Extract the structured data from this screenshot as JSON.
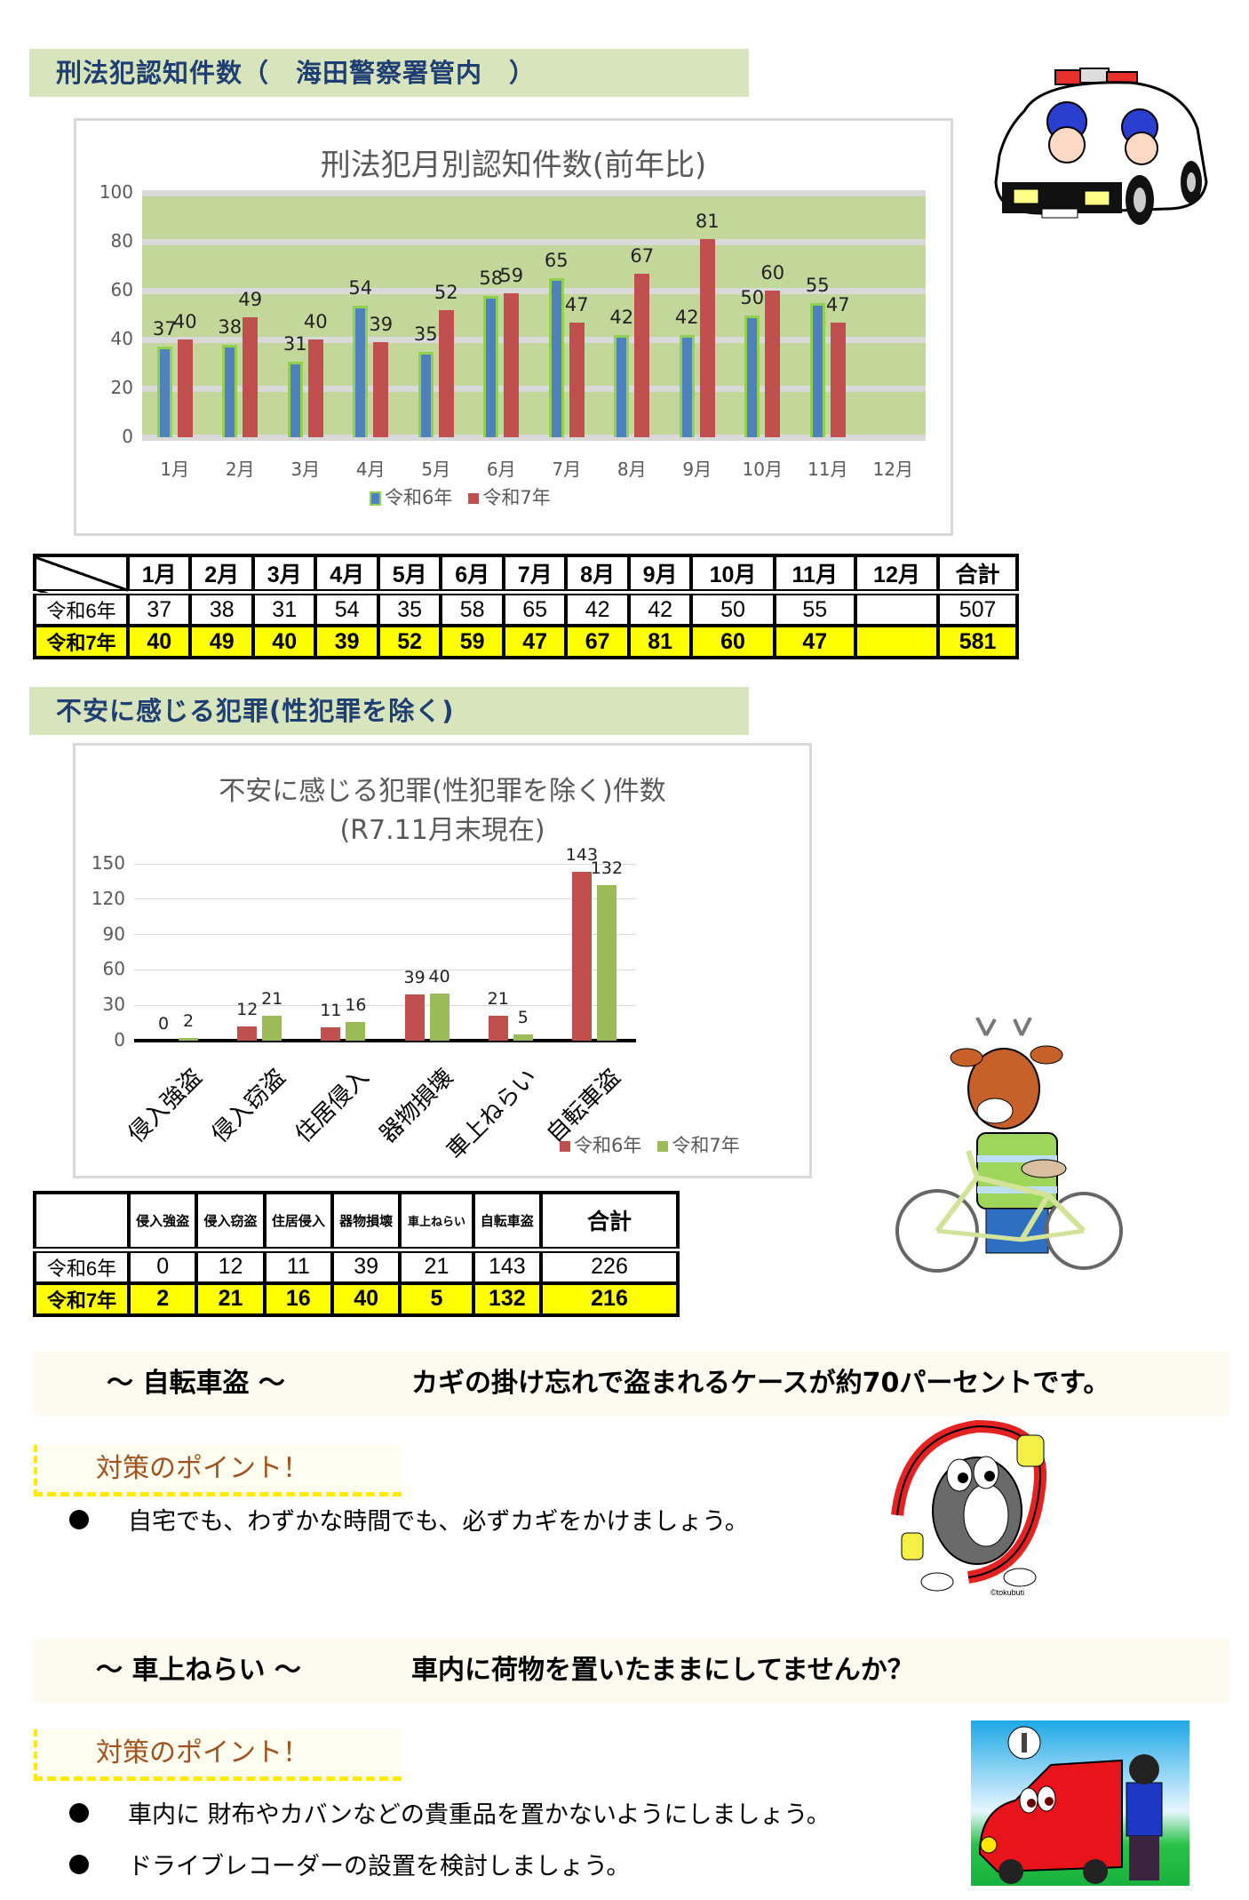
{
  "section1": {
    "title": "刑法犯認知件数（　海田警察署管内　）"
  },
  "section2": {
    "title": "不安に感じる犯罪(性犯罪を除く)"
  },
  "colors": {
    "header_bg": "#d8e4bc",
    "header_text": "#1f3f73",
    "r6_blue": "#4f81bd",
    "r6_outline": "#92d050",
    "r7_red": "#c0504d",
    "r7_green": "#9bbb59",
    "plot_bg": "#c4d79b",
    "highlight_yellow": "#ffff00",
    "point_text": "#a0521e"
  },
  "chart_data": [
    {
      "type": "bar",
      "title": "刑法犯月別認知件数(前年比)",
      "categories": [
        "1月",
        "2月",
        "3月",
        "4月",
        "5月",
        "6月",
        "7月",
        "8月",
        "9月",
        "10月",
        "11月",
        "12月"
      ],
      "series": [
        {
          "name": "令和6年",
          "values": [
            37,
            38,
            31,
            54,
            35,
            58,
            65,
            42,
            42,
            50,
            55,
            null
          ]
        },
        {
          "name": "令和7年",
          "values": [
            40,
            49,
            40,
            39,
            52,
            59,
            47,
            67,
            81,
            60,
            47,
            null
          ]
        }
      ],
      "xlabel": "",
      "ylabel": "",
      "ylim": [
        0,
        100
      ],
      "yticks": [
        0,
        20,
        40,
        60,
        80,
        100
      ],
      "grid": true,
      "legend_position": "bottom"
    },
    {
      "type": "bar",
      "title": "不安に感じる犯罪(性犯罪を除く)件数",
      "subtitle": "(R7.11月末現在)",
      "categories": [
        "侵入強盗",
        "侵入窃盗",
        "住居侵入",
        "器物損壊",
        "車上ねらい",
        "自転車盗"
      ],
      "series": [
        {
          "name": "令和6年",
          "values": [
            0,
            12,
            11,
            39,
            21,
            143
          ]
        },
        {
          "name": "令和7年",
          "values": [
            2,
            21,
            16,
            40,
            5,
            132
          ]
        }
      ],
      "xlabel": "",
      "ylabel": "",
      "ylim": [
        0,
        150
      ],
      "yticks": [
        0,
        30,
        60,
        90,
        120,
        150
      ],
      "grid": true,
      "legend_position": "bottom-right"
    }
  ],
  "table1": {
    "headers": [
      "",
      "1月",
      "2月",
      "3月",
      "4月",
      "5月",
      "6月",
      "7月",
      "8月",
      "9月",
      "10月",
      "11月",
      "12月",
      "合計"
    ],
    "rows": [
      {
        "label": "令和6年",
        "cells": [
          "37",
          "38",
          "31",
          "54",
          "35",
          "58",
          "65",
          "42",
          "42",
          "50",
          "55",
          "",
          "507"
        ]
      },
      {
        "label": "令和7年",
        "cells": [
          "40",
          "49",
          "40",
          "39",
          "52",
          "59",
          "47",
          "67",
          "81",
          "60",
          "47",
          "",
          "581"
        ]
      }
    ]
  },
  "table2": {
    "headers": [
      "",
      "侵入強盗",
      "侵入窃盗",
      "住居侵入",
      "器物損壊",
      "車上ねらい",
      "自転車盗",
      "合計"
    ],
    "rows": [
      {
        "label": "令和6年",
        "cells": [
          "0",
          "12",
          "11",
          "39",
          "21",
          "143",
          "226"
        ]
      },
      {
        "label": "令和7年",
        "cells": [
          "2",
          "21",
          "16",
          "40",
          "5",
          "132",
          "216"
        ]
      }
    ]
  },
  "bicycle": {
    "banner_topic": "～ 自転車盗 ～",
    "banner_message": "カギの掛け忘れで盗まれるケースが約70パーセントです。",
    "point_label": "対策のポイント！",
    "bullets": [
      "自宅でも、わずかな時間でも、必ずカギをかけましょう。"
    ],
    "illustration_credit": "©tokubuti"
  },
  "car_theft": {
    "banner_topic": "～ 車上ねらい ～",
    "banner_message": "車内に荷物を置いたままにしてませんか？",
    "point_label": "対策のポイント！",
    "bullets": [
      "車内に 財布やカバンなどの貴重品を置かないようにしましょう。",
      "ドライブレコーダーの設置を検討しましょう。"
    ]
  },
  "illustrations": {
    "police_car": "police-car-with-officers",
    "deer_bicycle": "deer-mascot-with-bicycle",
    "lock_mascot": "bicycle-lock-mascot",
    "car_thief": "car-thief-scene"
  }
}
